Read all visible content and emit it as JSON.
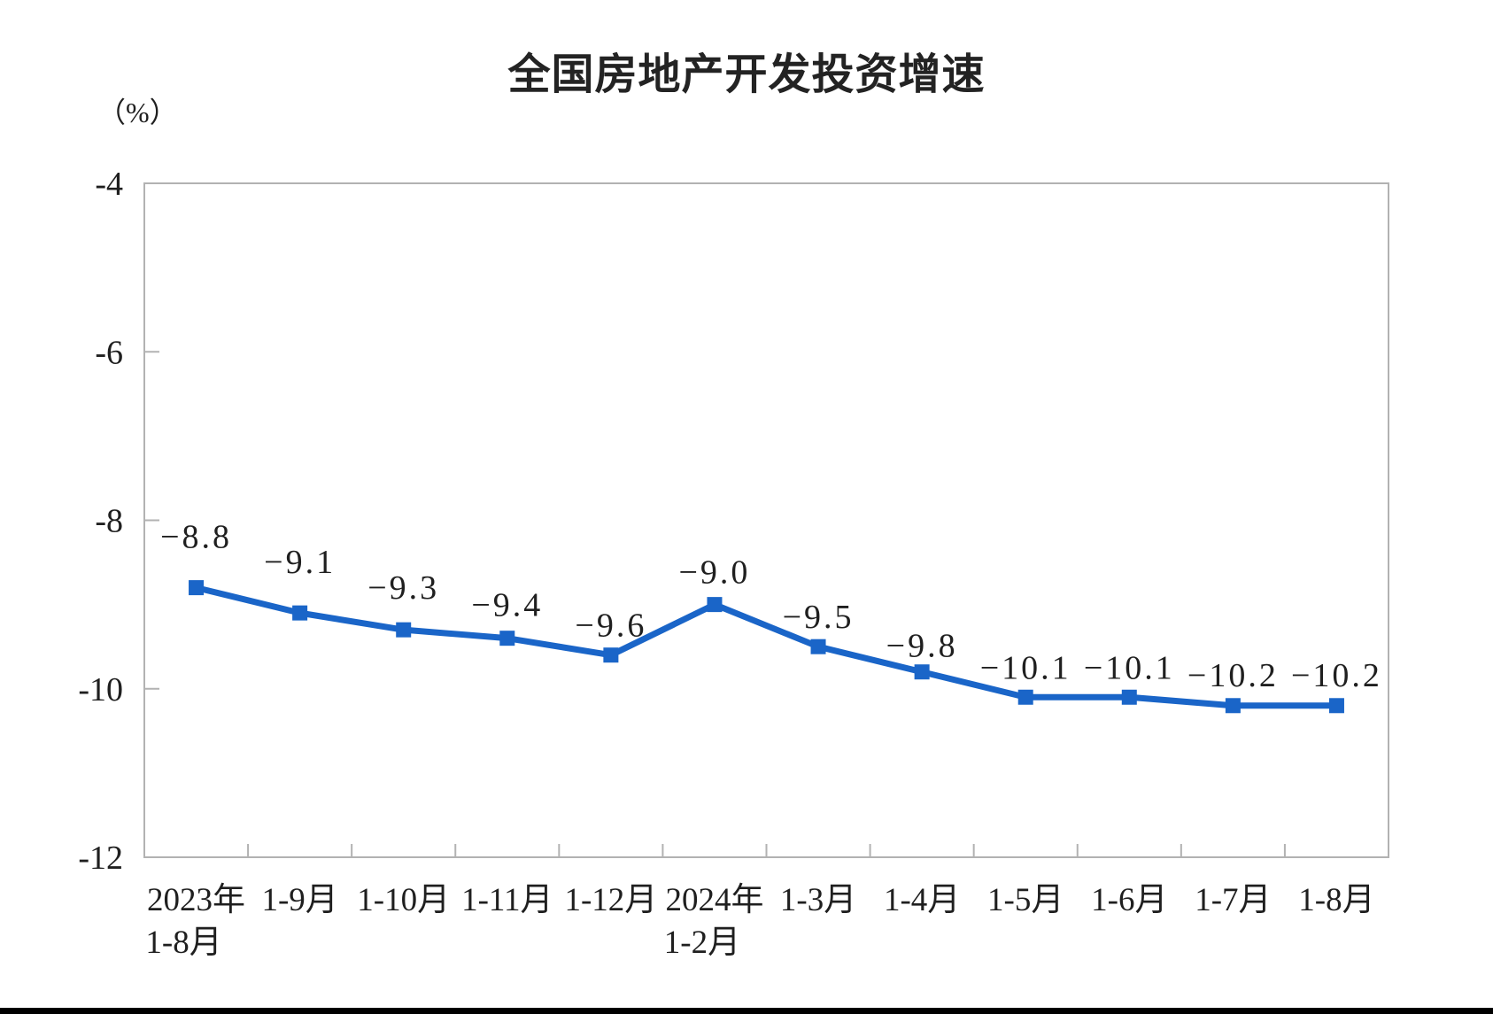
{
  "page": {
    "background": "#ffffff",
    "footer_bar_color": "#000000"
  },
  "chart": {
    "title": "全国房地产开发投资增速",
    "unit_label": "（%）"
  },
  "chart_data": {
    "type": "line",
    "title": "全国房地产开发投资增速",
    "ylabel": "（%）",
    "ylim": [
      -12,
      -4
    ],
    "yticks": [
      "-4",
      "-6",
      "-8",
      "-10",
      "-12"
    ],
    "grid": false,
    "legend": false,
    "line_color": "#1a65c8",
    "axis_color": "#b2b2b2",
    "text_color": "#1f1f1f",
    "marker": "square",
    "categories": [
      {
        "line1": "2023年",
        "line2": "1-8月"
      },
      {
        "line1": "1-9月",
        "line2": ""
      },
      {
        "line1": "1-10月",
        "line2": ""
      },
      {
        "line1": "1-11月",
        "line2": ""
      },
      {
        "line1": "1-12月",
        "line2": ""
      },
      {
        "line1": "2024年",
        "line2": "1-2月"
      },
      {
        "line1": "1-3月",
        "line2": ""
      },
      {
        "line1": "1-4月",
        "line2": ""
      },
      {
        "line1": "1-5月",
        "line2": ""
      },
      {
        "line1": "1-6月",
        "line2": ""
      },
      {
        "line1": "1-7月",
        "line2": ""
      },
      {
        "line1": "1-8月",
        "line2": ""
      }
    ],
    "series": [
      {
        "name": "全国房地产开发投资增速",
        "values": [
          -8.8,
          -9.1,
          -9.3,
          -9.4,
          -9.6,
          -9.0,
          -9.5,
          -9.8,
          -10.1,
          -10.1,
          -10.2,
          -10.2
        ],
        "labels": [
          "−8.8",
          "−9.1",
          "−9.3",
          "−9.4",
          "−9.6",
          "−9.0",
          "−9.5",
          "−9.8",
          "−10.1",
          "−10.1",
          "−10.2",
          "−10.2"
        ]
      }
    ]
  }
}
